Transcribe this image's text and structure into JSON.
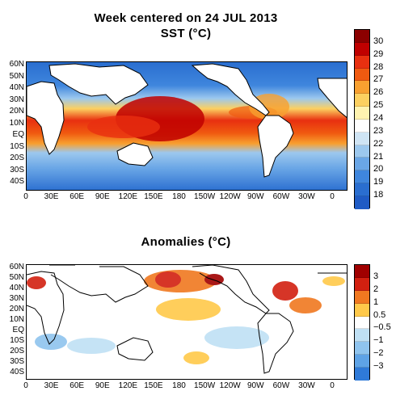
{
  "title_line1": "Week centered on 24 JUL 2013",
  "title_line2": "SST (°C)",
  "title_anom": "Anomalies (°C)",
  "lat_labels": [
    "60N",
    "50N",
    "40N",
    "30N",
    "20N",
    "10N",
    "EQ",
    "10S",
    "20S",
    "30S",
    "40S"
  ],
  "lon_labels": [
    "0",
    "30E",
    "60E",
    "90E",
    "120E",
    "150E",
    "180",
    "150W",
    "120W",
    "90W",
    "60W",
    "30W",
    "0"
  ],
  "sst_colorbar": {
    "labels": [
      "30",
      "29",
      "28",
      "27",
      "26",
      "25",
      "24",
      "23",
      "22",
      "21",
      "20",
      "19",
      "18"
    ],
    "colors": [
      "#8b0000",
      "#c00000",
      "#e83010",
      "#f05a10",
      "#f8a030",
      "#fcd060",
      "#fff3b0",
      "#ffffff",
      "#cfe4f4",
      "#9cc8ee",
      "#6aa6e6",
      "#3f86dd",
      "#2a6ed0",
      "#1f5bc5"
    ]
  },
  "anom_colorbar": {
    "labels": [
      "3",
      "2",
      "1",
      "0.5",
      "−0.5",
      "−1",
      "−2",
      "−3"
    ],
    "colors": [
      "#a00000",
      "#d22010",
      "#f07820",
      "#ffc94a",
      "#ffffff",
      "#bfe0f4",
      "#8fc4ee",
      "#5ea3e6",
      "#2f7ad8"
    ]
  }
}
